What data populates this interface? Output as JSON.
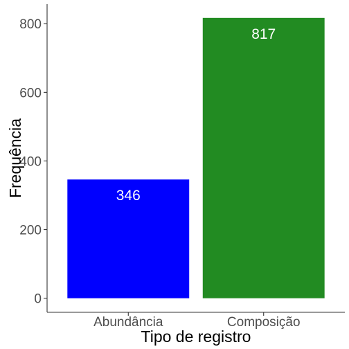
{
  "chart_data": {
    "type": "bar",
    "categories": [
      "Abundância",
      "Composição"
    ],
    "values": [
      346,
      817
    ],
    "data_labels": [
      "346",
      "817"
    ],
    "bar_colors": [
      "#0000ff",
      "#228b22"
    ],
    "xlabel": "Tipo de registro",
    "ylabel": "Frequência",
    "ylim": [
      -41,
      857
    ],
    "yticks": [
      0,
      200,
      400,
      600,
      800
    ],
    "ytick_labels": [
      "0",
      "200",
      "400",
      "600",
      "800"
    ],
    "grid": false,
    "legend": "none"
  }
}
